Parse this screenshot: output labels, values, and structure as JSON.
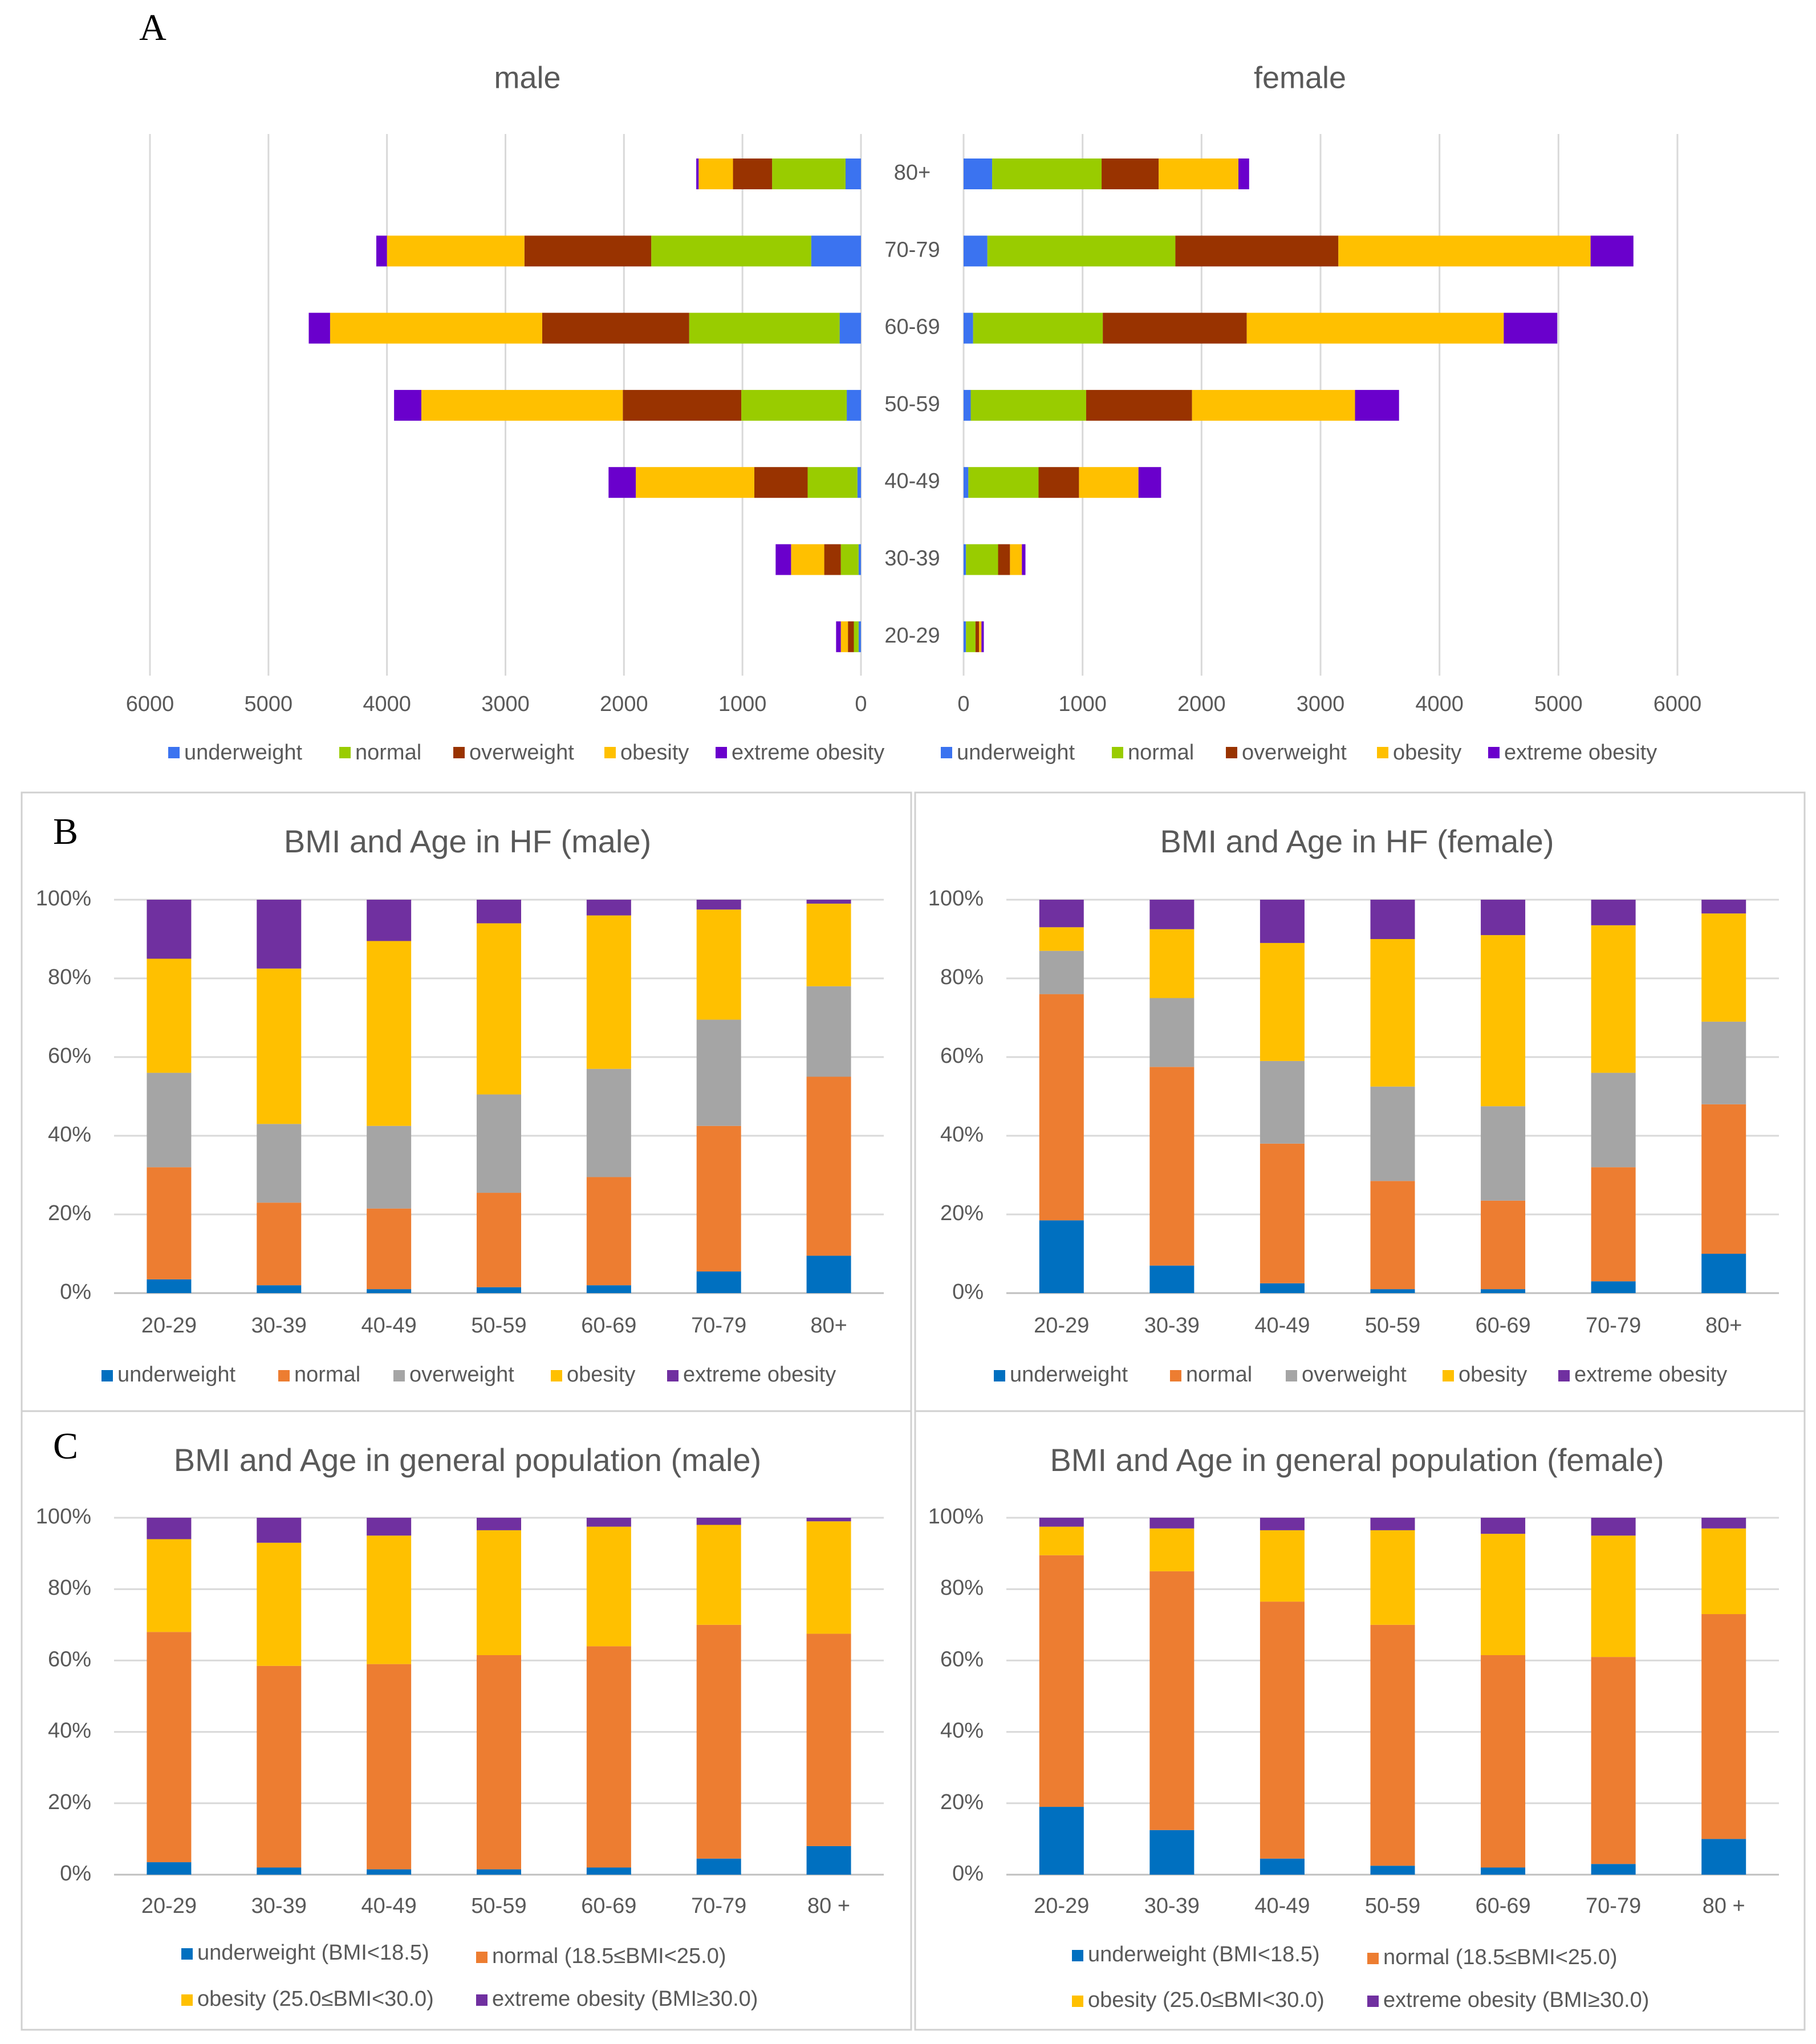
{
  "figure": {
    "panel_labels": [
      "A",
      "B",
      "C"
    ]
  },
  "colors": {
    "pyramid": {
      "underweight": "#3b73f0",
      "normal": "#99cc00",
      "overweight": "#993300",
      "obesity": "#ffc000",
      "extreme_obesity": "#6a00cc"
    },
    "hf": {
      "underweight": "#0070c0",
      "normal": "#ed7d31",
      "overweight": "#a5a5a5",
      "obesity": "#ffc000",
      "extreme_obesity": "#7030a0"
    },
    "gen": {
      "underweight": "#0070c0",
      "normal": "#ed7d31",
      "obesity": "#ffc000",
      "extreme_obesity": "#7030a0"
    },
    "grid": "#d9d9d9",
    "axis": "#bfbfbf",
    "text": "#595959",
    "border": "#d0d0d0"
  },
  "chart_data": [
    {
      "id": "A-male",
      "type": "bar",
      "orientation": "horizontal",
      "title": "male",
      "categories": [
        "80+",
        "70-79",
        "60-69",
        "50-59",
        "40-49",
        "30-39",
        "20-29"
      ],
      "series": [
        {
          "name": "underweight",
          "values": [
            130,
            420,
            180,
            120,
            30,
            20,
            20
          ]
        },
        {
          "name": "normal",
          "values": [
            620,
            1350,
            1270,
            890,
            420,
            150,
            40
          ]
        },
        {
          "name": "overweight",
          "values": [
            330,
            1070,
            1240,
            1000,
            450,
            140,
            50
          ]
        },
        {
          "name": "obesity",
          "values": [
            290,
            1160,
            1790,
            1700,
            1000,
            280,
            60
          ]
        },
        {
          "name": "extreme obesity",
          "values": [
            20,
            90,
            180,
            230,
            230,
            130,
            40
          ]
        }
      ],
      "xlim": [
        6000,
        0
      ],
      "xticks": [
        "6000",
        "5000",
        "4000",
        "3000",
        "2000",
        "1000",
        "0"
      ]
    },
    {
      "id": "A-female",
      "type": "bar",
      "orientation": "horizontal",
      "title": "female",
      "categories": [
        "80+",
        "70-79",
        "60-69",
        "50-59",
        "40-49",
        "30-39",
        "20-29"
      ],
      "series": [
        {
          "name": "underweight",
          "values": [
            240,
            200,
            80,
            60,
            40,
            20,
            20
          ]
        },
        {
          "name": "normal",
          "values": [
            920,
            1580,
            1090,
            970,
            590,
            270,
            80
          ]
        },
        {
          "name": "overweight",
          "values": [
            480,
            1370,
            1210,
            890,
            340,
            100,
            30
          ]
        },
        {
          "name": "obesity",
          "values": [
            670,
            2120,
            2160,
            1370,
            500,
            100,
            20
          ]
        },
        {
          "name": "extreme obesity",
          "values": [
            90,
            360,
            450,
            370,
            190,
            30,
            20
          ]
        }
      ],
      "xlim": [
        0,
        6000
      ],
      "xticks": [
        "0",
        "1000",
        "2000",
        "3000",
        "4000",
        "5000",
        "6000"
      ]
    },
    {
      "id": "B-male",
      "type": "bar",
      "stacked": "percent",
      "title": "BMI and Age in HF (male)",
      "categories": [
        "20-29",
        "30-39",
        "40-49",
        "50-59",
        "60-69",
        "70-79",
        "80+"
      ],
      "series": [
        {
          "name": "underweight",
          "values": [
            3.5,
            2,
            1,
            1.5,
            2,
            5.5,
            9.5
          ]
        },
        {
          "name": "normal",
          "values": [
            28.5,
            21,
            20.5,
            24,
            27.5,
            37,
            45.5
          ]
        },
        {
          "name": "overweight",
          "values": [
            24,
            20,
            21,
            25,
            27.5,
            27,
            23
          ]
        },
        {
          "name": "obesity",
          "values": [
            29,
            39.5,
            47,
            43.5,
            39,
            28,
            21
          ]
        },
        {
          "name": "extreme obesity",
          "values": [
            15,
            17.5,
            10.5,
            6,
            4,
            2.5,
            1
          ]
        }
      ],
      "yticks": [
        "0%",
        "20%",
        "40%",
        "60%",
        "80%",
        "100%"
      ],
      "ylim": [
        0,
        100
      ]
    },
    {
      "id": "B-female",
      "type": "bar",
      "stacked": "percent",
      "title": "BMI and Age in HF (female)",
      "categories": [
        "20-29",
        "30-39",
        "40-49",
        "50-59",
        "60-69",
        "70-79",
        "80+"
      ],
      "series": [
        {
          "name": "underweight",
          "values": [
            18.5,
            7,
            2.5,
            1,
            1,
            3,
            10
          ]
        },
        {
          "name": "normal",
          "values": [
            57.5,
            50.5,
            35.5,
            27.5,
            22.5,
            29,
            38
          ]
        },
        {
          "name": "overweight",
          "values": [
            11,
            17.5,
            21,
            24,
            24,
            24,
            21
          ]
        },
        {
          "name": "obesity",
          "values": [
            6,
            17.5,
            30,
            37.5,
            43.5,
            37.5,
            27.5
          ]
        },
        {
          "name": "extreme obesity",
          "values": [
            7,
            7.5,
            11,
            10,
            9,
            6.5,
            3.5
          ]
        }
      ],
      "yticks": [
        "0%",
        "20%",
        "40%",
        "60%",
        "80%",
        "100%"
      ],
      "ylim": [
        0,
        100
      ]
    },
    {
      "id": "C-male",
      "type": "bar",
      "stacked": "percent",
      "title": "BMI and Age in general population (male)",
      "categories": [
        "20-29",
        "30-39",
        "40-49",
        "50-59",
        "60-69",
        "70-79",
        "80 +"
      ],
      "series": [
        {
          "name": "underweight (BMI<18.5)",
          "values": [
            3.5,
            2,
            1.5,
            1.5,
            2,
            4.5,
            8
          ]
        },
        {
          "name": "normal (18.5≤BMI<25.0)",
          "values": [
            64.5,
            56.5,
            57.5,
            60,
            62,
            65.5,
            59.5
          ]
        },
        {
          "name": "obesity (25.0≤BMI<30.0)",
          "values": [
            26,
            34.5,
            36,
            35,
            33.5,
            28,
            31.5
          ]
        },
        {
          "name": "extreme obesity (BMI≥30.0)",
          "values": [
            6,
            7,
            5,
            3.5,
            2.5,
            2,
            1
          ]
        }
      ],
      "yticks": [
        "0%",
        "20%",
        "40%",
        "60%",
        "80%",
        "100%"
      ],
      "ylim": [
        0,
        100
      ]
    },
    {
      "id": "C-female",
      "type": "bar",
      "stacked": "percent",
      "title": "BMI and Age in general population (female)",
      "categories": [
        "20-29",
        "30-39",
        "40-49",
        "50-59",
        "60-69",
        "70-79",
        "80 +"
      ],
      "series": [
        {
          "name": "underweight (BMI<18.5)",
          "values": [
            19,
            12.5,
            4.5,
            2.5,
            2,
            3,
            10
          ]
        },
        {
          "name": "normal (18.5≤BMI<25.0)",
          "values": [
            70.5,
            72.5,
            72,
            67.5,
            59.5,
            58,
            63
          ]
        },
        {
          "name": "obesity (25.0≤BMI<30.0)",
          "values": [
            8,
            12,
            20,
            26.5,
            34,
            34,
            24
          ]
        },
        {
          "name": "extreme obesity (BMI≥30.0)",
          "values": [
            2.5,
            3,
            3.5,
            3.5,
            4.5,
            5,
            3
          ]
        }
      ],
      "yticks": [
        "0%",
        "20%",
        "40%",
        "60%",
        "80%",
        "100%"
      ],
      "ylim": [
        0,
        100
      ]
    }
  ]
}
